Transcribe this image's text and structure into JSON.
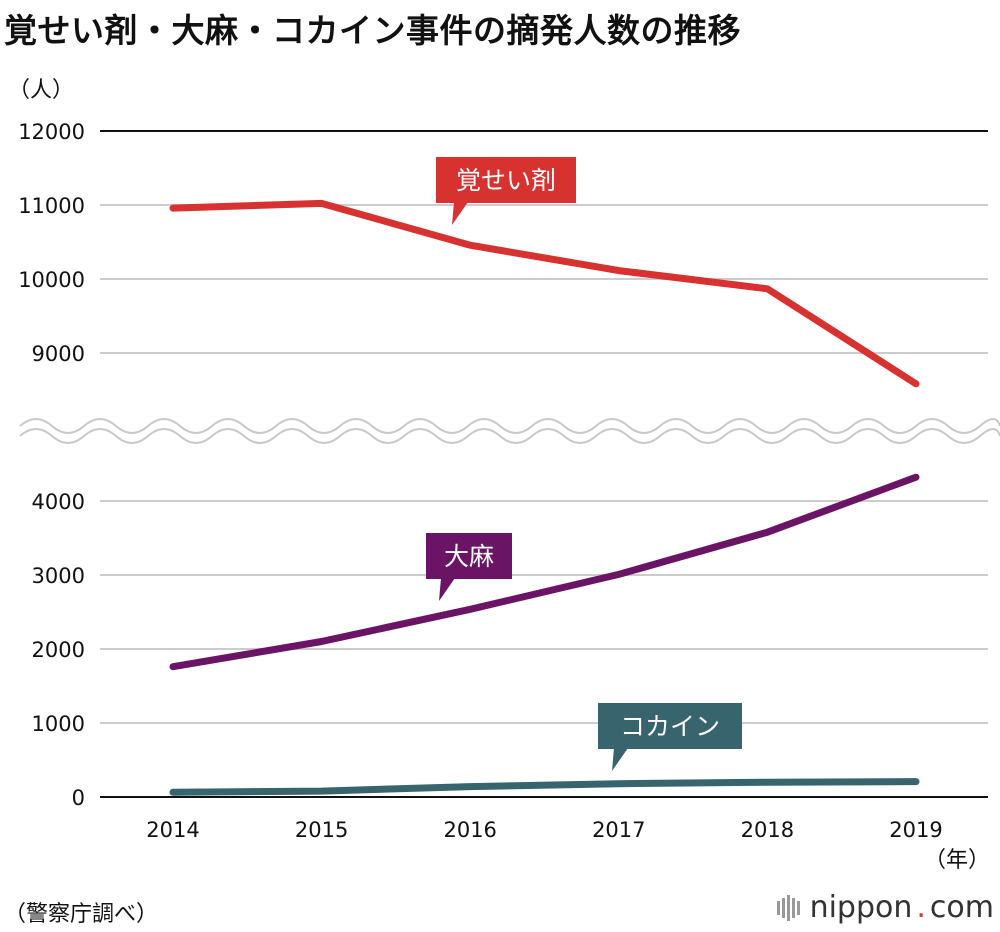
{
  "header": {
    "title": "覚せい剤・大麻・コカイン事件の摘発人数の推移",
    "y_unit": "（人）",
    "x_unit": "（年）"
  },
  "footer": {
    "source": "（警察庁調べ）",
    "brand_name": "nippon",
    "brand_dot": ".",
    "brand_tld": "com"
  },
  "chart_data": {
    "type": "line",
    "title": "覚せい剤・大麻・コカイン事件の摘発人数の推移",
    "xlabel": "（年）",
    "ylabel": "（人）",
    "categories": [
      "2014",
      "2015",
      "2016",
      "2017",
      "2018",
      "2019"
    ],
    "axis_break": true,
    "upper_panel": {
      "ylim": [
        8300,
        12000
      ],
      "ticks": [
        "12000",
        "11000",
        "10000",
        "9000"
      ],
      "tick_values": [
        12000,
        11000,
        10000,
        9000
      ]
    },
    "lower_panel": {
      "ylim": [
        0,
        4500
      ],
      "ticks": [
        "4000",
        "3000",
        "2000",
        "1000",
        "0"
      ],
      "tick_values": [
        4000,
        3000,
        2000,
        1000,
        0
      ]
    },
    "series": [
      {
        "name": "覚せい剤",
        "panel": "upper",
        "color": "#d7322f",
        "values": [
          10958,
          11022,
          10457,
          10113,
          9868,
          8584
        ],
        "label_anchor_index": 2
      },
      {
        "name": "大麻",
        "panel": "lower",
        "color": "#6b1466",
        "values": [
          1761,
          2101,
          2536,
          3008,
          3578,
          4321
        ],
        "label_anchor_index": 2
      },
      {
        "name": "コカイン",
        "panel": "lower",
        "color": "#37646d",
        "values": [
          63,
          80,
          140,
          180,
          200,
          208
        ],
        "label_anchor_index": 3
      }
    ]
  }
}
